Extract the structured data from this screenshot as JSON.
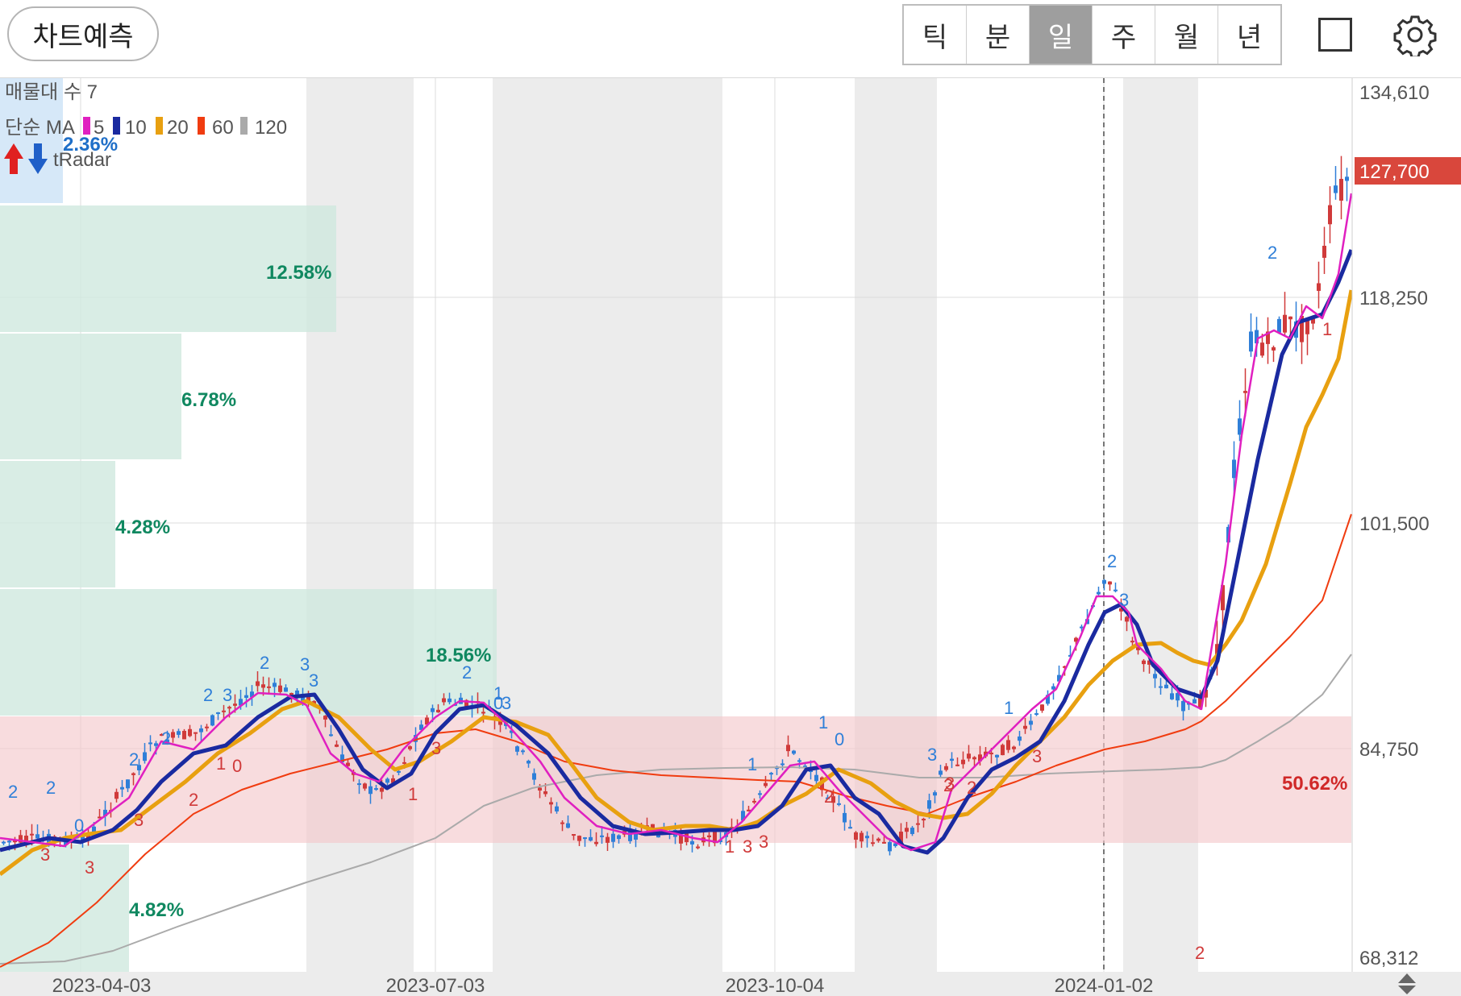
{
  "toolbar": {
    "predict_label": "차트예측",
    "periods": [
      "틱",
      "분",
      "일",
      "주",
      "월",
      "년"
    ],
    "active_period": "일",
    "icons": [
      "checkbox-square-icon",
      "gear-icon"
    ]
  },
  "legend": {
    "volume_profile": "매물대 수 7",
    "ma_label": "단순 MA",
    "ma_items": [
      {
        "period": "5",
        "color": "#e020c0"
      },
      {
        "period": "10",
        "color": "#1a2aa0"
      },
      {
        "period": "20",
        "color": "#e8a010"
      },
      {
        "period": "60",
        "color": "#f03c10"
      },
      {
        "period": "120",
        "color": "#aaaaaa"
      }
    ],
    "radar_label": "tRadar"
  },
  "current_price": "127,700",
  "volume_profile_pct": [
    "2.36%",
    "12.58%",
    "6.78%",
    "4.28%",
    "18.56%",
    "50.62%",
    "4.82%"
  ],
  "chart_data": {
    "type": "candlestick",
    "y_ticks": [
      "134,610",
      "118,250",
      "101,500",
      "84,750",
      "68,312"
    ],
    "x_ticks": [
      "2023-04-03",
      "2023-07-03",
      "2023-10-04",
      "2024-01-02"
    ],
    "ylim": [
      68312,
      134610
    ],
    "volume_profile": [
      {
        "from": 127600,
        "to": 134610,
        "pct": 2.36
      },
      {
        "from": 117800,
        "to": 127000,
        "pct": 12.58
      },
      {
        "from": 108500,
        "to": 117800,
        "pct": 6.78
      },
      {
        "from": 99300,
        "to": 108500,
        "pct": 4.28
      },
      {
        "from": 90000,
        "to": 99300,
        "pct": 18.56
      },
      {
        "from": 77000,
        "to": 86200,
        "pct": 50.62
      },
      {
        "from": 68312,
        "to": 77000,
        "pct": 4.82
      }
    ],
    "key_points": [
      {
        "date": "2023-03",
        "close": 77500
      },
      {
        "date": "2023-04-20",
        "close": 84000
      },
      {
        "date": "2023-05-25",
        "close": 89500
      },
      {
        "date": "2023-06-20",
        "close": 80200
      },
      {
        "date": "2023-07-20",
        "close": 89000
      },
      {
        "date": "2023-08-25",
        "close": 78300
      },
      {
        "date": "2023-09-25",
        "close": 78800
      },
      {
        "date": "2023-10-10",
        "close": 86500
      },
      {
        "date": "2023-11-01",
        "close": 77000
      },
      {
        "date": "2023-12-27",
        "close": 99500
      },
      {
        "date": "2024-01-20",
        "close": 87000
      },
      {
        "date": "2024-02-01",
        "close": 118000
      },
      {
        "date": "2024-02-29",
        "close": 127700
      }
    ],
    "signals": [
      "2",
      "2",
      "0",
      "3",
      "3",
      "2",
      "2",
      "3",
      "2",
      "3",
      "2",
      "2",
      "3",
      "3",
      "1",
      "0",
      "2",
      "0",
      "1",
      "3",
      "3",
      "1",
      "1",
      "3",
      "3",
      "1",
      "1",
      "0",
      "2",
      "3",
      "2",
      "1",
      "3",
      "2",
      "3",
      "2",
      "2",
      "1",
      "2",
      "3"
    ]
  }
}
